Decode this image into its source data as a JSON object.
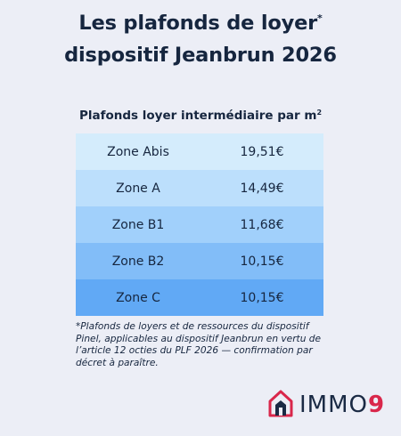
{
  "header": {
    "title_line1": "Les plafonds de loyer",
    "title_sup": "*",
    "title_line2": "dispositif Jeanbrun 2026"
  },
  "table": {
    "heading": "Plafonds loyer intermédiaire par m",
    "heading_sup": "2",
    "rows": [
      {
        "zone": "Zone Abis",
        "value": "19,51€",
        "color": "#d4ecfc"
      },
      {
        "zone": "Zone A",
        "value": "14,49€",
        "color": "#bcdffc"
      },
      {
        "zone": "Zone B1",
        "value": "11,68€",
        "color": "#a1d0fb"
      },
      {
        "zone": "Zone B2",
        "value": "10,15€",
        "color": "#82bdf8"
      },
      {
        "zone": "Zone C",
        "value": "10,15€",
        "color": "#61a9f5"
      }
    ]
  },
  "footnote": "*Plafonds de loyers et de ressources du dispositif Pinel, applicables au dispositif Jeanbrun en vertu de l’article 12 octies du PLF 2026 — confirmation par décret à paraître.",
  "logo": {
    "text": "IMMO",
    "digit": "9",
    "icon": "house-icon",
    "brand_color": "#d9274b",
    "dark_color": "#1a2a44"
  }
}
